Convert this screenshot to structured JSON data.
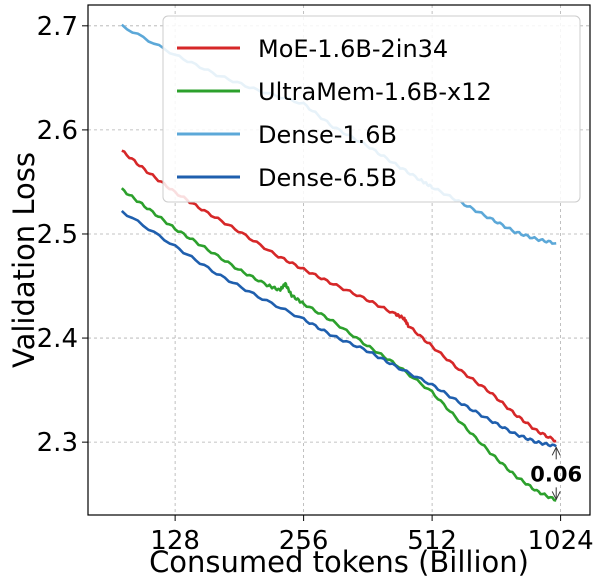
{
  "chart_data": {
    "type": "line",
    "xlabel": "Consumed tokens (Billion)",
    "ylabel": "Validation Loss",
    "x_scale": "log2",
    "xlim": [
      80,
      1200
    ],
    "ylim": [
      2.23,
      2.72
    ],
    "xticks": [
      128,
      256,
      512,
      1024
    ],
    "xtick_labels": [
      "128",
      "256",
      "512",
      "1024"
    ],
    "yticks": [
      2.3,
      2.4,
      2.5,
      2.6,
      2.7
    ],
    "ytick_labels": [
      "2.3",
      "2.4",
      "2.5",
      "2.6",
      "2.7"
    ],
    "grid": true,
    "legend_position": "top-right",
    "series": [
      {
        "name": "MoE-1.6B-2in34",
        "color": "#d62728",
        "points": [
          [
            96,
            2.58
          ],
          [
            110,
            2.56
          ],
          [
            128,
            2.54
          ],
          [
            150,
            2.522
          ],
          [
            180,
            2.503
          ],
          [
            220,
            2.48
          ],
          [
            256,
            2.466
          ],
          [
            300,
            2.452
          ],
          [
            360,
            2.437
          ],
          [
            420,
            2.423
          ],
          [
            440,
            2.419
          ],
          [
            450,
            2.412
          ],
          [
            512,
            2.392
          ],
          [
            600,
            2.368
          ],
          [
            700,
            2.348
          ],
          [
            800,
            2.327
          ],
          [
            900,
            2.311
          ],
          [
            1000,
            2.301
          ]
        ]
      },
      {
        "name": "UltraMem-1.6B-x12",
        "color": "#2ca02c",
        "points": [
          [
            96,
            2.543
          ],
          [
            110,
            2.525
          ],
          [
            128,
            2.505
          ],
          [
            150,
            2.487
          ],
          [
            180,
            2.466
          ],
          [
            210,
            2.451
          ],
          [
            225,
            2.446
          ],
          [
            232,
            2.452
          ],
          [
            240,
            2.441
          ],
          [
            256,
            2.433
          ],
          [
            300,
            2.416
          ],
          [
            360,
            2.393
          ],
          [
            420,
            2.375
          ],
          [
            512,
            2.348
          ],
          [
            600,
            2.318
          ],
          [
            700,
            2.29
          ],
          [
            800,
            2.268
          ],
          [
            900,
            2.253
          ],
          [
            1000,
            2.244
          ]
        ]
      },
      {
        "name": "Dense-1.6B",
        "color": "#5ca8d8",
        "points": [
          [
            96,
            2.7
          ],
          [
            128,
            2.672
          ],
          [
            160,
            2.653
          ],
          [
            200,
            2.638
          ],
          [
            256,
            2.625
          ],
          [
            300,
            2.603
          ],
          [
            360,
            2.585
          ],
          [
            420,
            2.567
          ],
          [
            480,
            2.552
          ],
          [
            512,
            2.545
          ],
          [
            600,
            2.53
          ],
          [
            700,
            2.515
          ],
          [
            800,
            2.502
          ],
          [
            900,
            2.495
          ],
          [
            1000,
            2.491
          ]
        ]
      },
      {
        "name": "Dense-6.5B",
        "color": "#1f5fae",
        "points": [
          [
            96,
            2.522
          ],
          [
            128,
            2.488
          ],
          [
            160,
            2.462
          ],
          [
            200,
            2.44
          ],
          [
            256,
            2.418
          ],
          [
            300,
            2.402
          ],
          [
            360,
            2.388
          ],
          [
            420,
            2.373
          ],
          [
            512,
            2.355
          ],
          [
            600,
            2.337
          ],
          [
            700,
            2.321
          ],
          [
            800,
            2.308
          ],
          [
            900,
            2.3
          ],
          [
            1000,
            2.296
          ]
        ]
      }
    ],
    "annotation": {
      "text": "0.06",
      "x": 1000,
      "from_y": 2.296,
      "to_y": 2.244
    }
  }
}
